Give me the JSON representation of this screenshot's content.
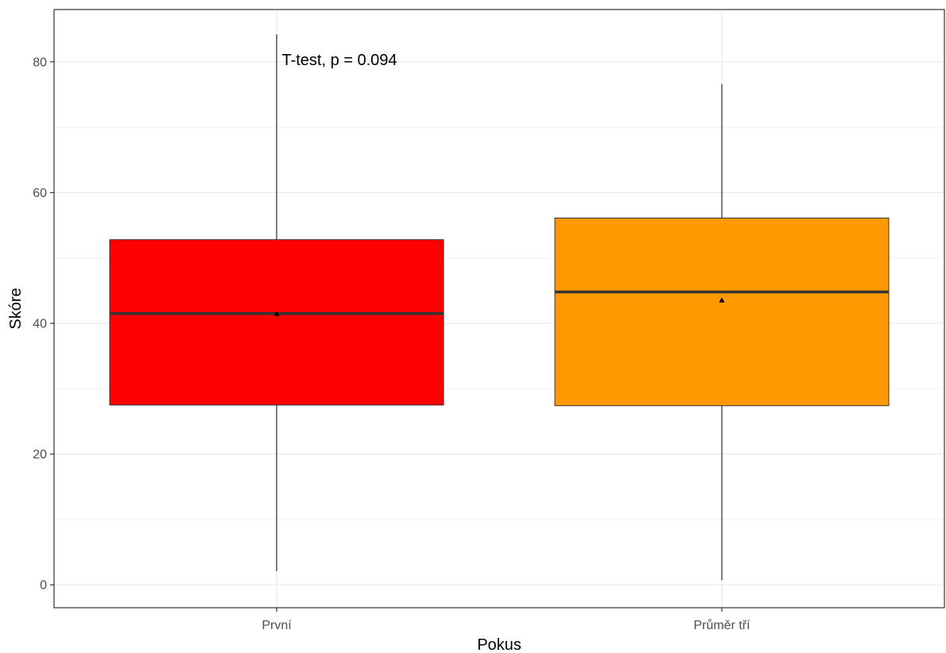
{
  "chart_data": {
    "type": "boxplot",
    "xlabel": "Pokus",
    "ylabel": "Skóre",
    "ylim": [
      -3.5,
      88
    ],
    "yticks": [
      0,
      20,
      40,
      60,
      80
    ],
    "grid": true,
    "annotation": "T-test, p = 0.094",
    "categories": [
      "První",
      "Průměr tří"
    ],
    "boxes": [
      {
        "category": "První",
        "min": 2.1,
        "q1": 27.5,
        "median": 41.5,
        "q3": 52.8,
        "max": 84.2,
        "mean": 41.4,
        "color": "#ff0000"
      },
      {
        "category": "Průměr tří",
        "min": 0.7,
        "q1": 27.4,
        "median": 44.8,
        "q3": 56.1,
        "max": 76.6,
        "mean": 43.5,
        "color": "#ff9900"
      }
    ]
  }
}
